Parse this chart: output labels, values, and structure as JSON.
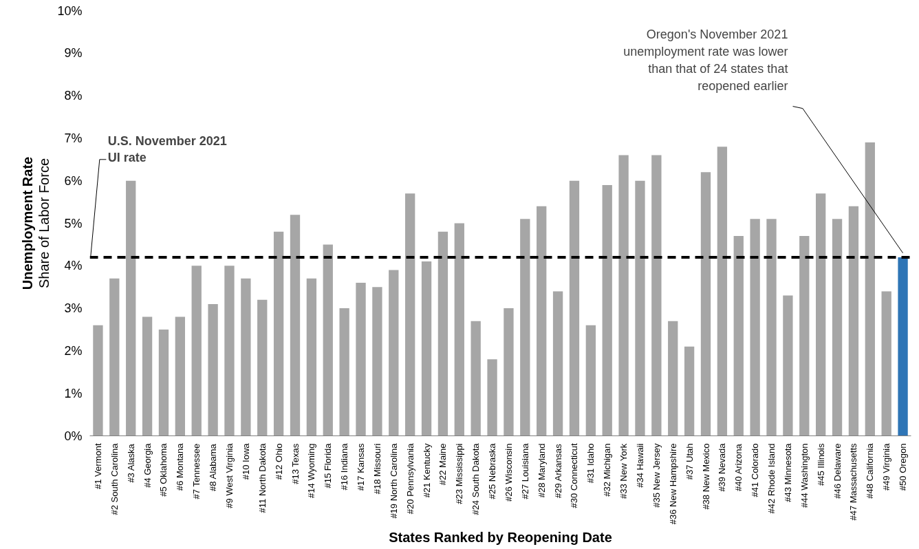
{
  "chart_data": {
    "type": "bar",
    "xlabel": "States Ranked by Reopening Date",
    "ylabel": "Unemployment Rate",
    "categories": [
      "#1 Vermont",
      "#2 South Carolina",
      "#3 Alaska",
      "#4 Georgia",
      "#5 Oklahoma",
      "#6 Montana",
      "#7 Tennessee",
      "#8 Alabama",
      "#9 West Virginia",
      "#10 Iowa",
      "#11 North Dakota",
      "#12 Ohio",
      "#13 Texas",
      "#14 Wyoming",
      "#15 Florida",
      "#16 Indiana",
      "#17 Kansas",
      "#18 Missouri",
      "#19 North Carolina",
      "#20 Pennsylvania",
      "#21 Kentucky",
      "#22 Maine",
      "#23 Mississippi",
      "#24 South Dakota",
      "#25 Nebraska",
      "#26 Wisconsin",
      "#27 Louisiana",
      "#28 Maryland",
      "#29 Arkansas",
      "#30 Connecticut",
      "#31 Idaho",
      "#32 Michigan",
      "#33 New York",
      "#34 Hawaii",
      "#35 New Jersey",
      "#36 New Hampshire",
      "#37 Utah",
      "#38 New Mexico",
      "#39 Nevada",
      "#40 Arizona",
      "#41 Colorado",
      "#42 Rhode Island",
      "#43 Minnesota",
      "#44 Washington",
      "#45 Illinois",
      "#46 Delaware",
      "#47 Massachusetts",
      "#48 California",
      "#49 Virginia",
      "#50 Oregon"
    ],
    "values": [
      2.6,
      3.7,
      6.0,
      2.8,
      2.5,
      2.8,
      4.0,
      3.1,
      4.0,
      3.7,
      3.2,
      4.8,
      5.2,
      3.7,
      4.5,
      3.0,
      3.6,
      3.5,
      3.9,
      5.7,
      4.1,
      4.8,
      5.0,
      2.7,
      1.8,
      3.0,
      5.1,
      5.4,
      3.4,
      6.0,
      2.6,
      5.9,
      6.6,
      6.0,
      6.6,
      2.7,
      2.1,
      6.2,
      6.8,
      4.7,
      5.1,
      5.1,
      3.3,
      4.7,
      5.7,
      5.1,
      5.4,
      6.9,
      3.4,
      4.2
    ],
    "colors": [
      "#a6a6a6",
      "#a6a6a6",
      "#a6a6a6",
      "#a6a6a6",
      "#a6a6a6",
      "#a6a6a6",
      "#a6a6a6",
      "#a6a6a6",
      "#a6a6a6",
      "#a6a6a6",
      "#a6a6a6",
      "#a6a6a6",
      "#a6a6a6",
      "#a6a6a6",
      "#a6a6a6",
      "#a6a6a6",
      "#a6a6a6",
      "#a6a6a6",
      "#a6a6a6",
      "#a6a6a6",
      "#a6a6a6",
      "#a6a6a6",
      "#a6a6a6",
      "#a6a6a6",
      "#a6a6a6",
      "#a6a6a6",
      "#a6a6a6",
      "#a6a6a6",
      "#a6a6a6",
      "#a6a6a6",
      "#a6a6a6",
      "#a6a6a6",
      "#a6a6a6",
      "#a6a6a6",
      "#a6a6a6",
      "#a6a6a6",
      "#a6a6a6",
      "#a6a6a6",
      "#a6a6a6",
      "#a6a6a6",
      "#a6a6a6",
      "#a6a6a6",
      "#a6a6a6",
      "#a6a6a6",
      "#a6a6a6",
      "#a6a6a6",
      "#a6a6a6",
      "#a6a6a6",
      "#a6a6a6",
      "#2e75b6"
    ],
    "ylim": [
      0,
      10
    ],
    "yticks": [
      {
        "value": 0,
        "label": "0%"
      },
      {
        "value": 1,
        "label": "1%"
      },
      {
        "value": 2,
        "label": "2%"
      },
      {
        "value": 3,
        "label": "3%"
      },
      {
        "value": 4,
        "label": "4%"
      },
      {
        "value": 5,
        "label": "5%"
      },
      {
        "value": 6,
        "label": "6%"
      },
      {
        "value": 7,
        "label": "7%"
      },
      {
        "value": 8,
        "label": "8%"
      },
      {
        "value": 9,
        "label": "9%"
      },
      {
        "value": 10,
        "label": "10%"
      }
    ],
    "ref_lines": [
      {
        "axis": "y",
        "value": 4.2,
        "label": "U.S. November 2021 UI rate",
        "color": "#000000",
        "line_style": "dashed"
      }
    ],
    "annotations": [
      "Share of Labor Force",
      {
        "text": "Oregon's November 2021 unemployment rate was lower than that of 24 states that reopened earlier",
        "x": "#50 Oregon",
        "y": 4.2
      }
    ],
    "grid": false
  }
}
